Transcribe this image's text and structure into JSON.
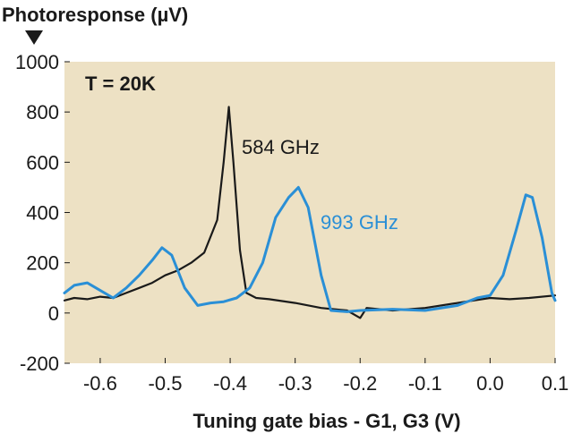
{
  "chart_data": {
    "type": "line",
    "ylabel": "Photoresponse (µV)",
    "xlabel": "Tuning gate bias - G1, G3 (V)",
    "annotation_temp": "T = 20K",
    "xlim": [
      -0.655,
      0.1
    ],
    "ylim": [
      -200,
      1000
    ],
    "x_ticks": [
      -0.6,
      -0.5,
      -0.4,
      -0.3,
      -0.2,
      -0.1,
      0.0,
      0.1
    ],
    "x_tick_labels": [
      "-0.6",
      "-0.5",
      "-0.4",
      "-0.3",
      "-0.2",
      "-0.1",
      "0.0",
      "0.1"
    ],
    "y_ticks": [
      1000,
      800,
      600,
      400,
      200,
      0,
      -200
    ],
    "y_tick_labels": [
      "1000",
      "800",
      "600",
      "400",
      "200",
      "0",
      "-200"
    ],
    "plot_background": "#ede1c4",
    "series": [
      {
        "name": "584 GHz",
        "color": "#1a1a1a",
        "points": [
          [
            -0.655,
            50
          ],
          [
            -0.64,
            60
          ],
          [
            -0.62,
            55
          ],
          [
            -0.6,
            65
          ],
          [
            -0.58,
            60
          ],
          [
            -0.56,
            80
          ],
          [
            -0.54,
            100
          ],
          [
            -0.52,
            120
          ],
          [
            -0.5,
            150
          ],
          [
            -0.48,
            170
          ],
          [
            -0.46,
            200
          ],
          [
            -0.44,
            240
          ],
          [
            -0.42,
            370
          ],
          [
            -0.41,
            600
          ],
          [
            -0.402,
            820
          ],
          [
            -0.395,
            600
          ],
          [
            -0.385,
            250
          ],
          [
            -0.375,
            80
          ],
          [
            -0.36,
            60
          ],
          [
            -0.34,
            55
          ],
          [
            -0.3,
            40
          ],
          [
            -0.26,
            20
          ],
          [
            -0.24,
            15
          ],
          [
            -0.22,
            10
          ],
          [
            -0.2,
            -20
          ],
          [
            -0.19,
            20
          ],
          [
            -0.15,
            10
          ],
          [
            -0.1,
            20
          ],
          [
            -0.05,
            40
          ],
          [
            0.0,
            60
          ],
          [
            0.03,
            55
          ],
          [
            0.06,
            60
          ],
          [
            0.1,
            70
          ]
        ]
      },
      {
        "name": "993 GHz",
        "color": "#2a8fd6",
        "points": [
          [
            -0.655,
            80
          ],
          [
            -0.64,
            110
          ],
          [
            -0.62,
            120
          ],
          [
            -0.6,
            90
          ],
          [
            -0.58,
            60
          ],
          [
            -0.56,
            100
          ],
          [
            -0.54,
            150
          ],
          [
            -0.52,
            210
          ],
          [
            -0.505,
            260
          ],
          [
            -0.49,
            230
          ],
          [
            -0.47,
            100
          ],
          [
            -0.45,
            30
          ],
          [
            -0.43,
            40
          ],
          [
            -0.41,
            45
          ],
          [
            -0.39,
            60
          ],
          [
            -0.37,
            100
          ],
          [
            -0.35,
            200
          ],
          [
            -0.33,
            380
          ],
          [
            -0.31,
            460
          ],
          [
            -0.295,
            500
          ],
          [
            -0.28,
            420
          ],
          [
            -0.26,
            150
          ],
          [
            -0.245,
            10
          ],
          [
            -0.22,
            5
          ],
          [
            -0.2,
            10
          ],
          [
            -0.15,
            15
          ],
          [
            -0.1,
            10
          ],
          [
            -0.05,
            30
          ],
          [
            -0.02,
            60
          ],
          [
            0.0,
            70
          ],
          [
            0.02,
            150
          ],
          [
            0.04,
            330
          ],
          [
            0.055,
            470
          ],
          [
            0.065,
            460
          ],
          [
            0.08,
            300
          ],
          [
            0.095,
            80
          ],
          [
            0.1,
            50
          ]
        ]
      }
    ]
  }
}
